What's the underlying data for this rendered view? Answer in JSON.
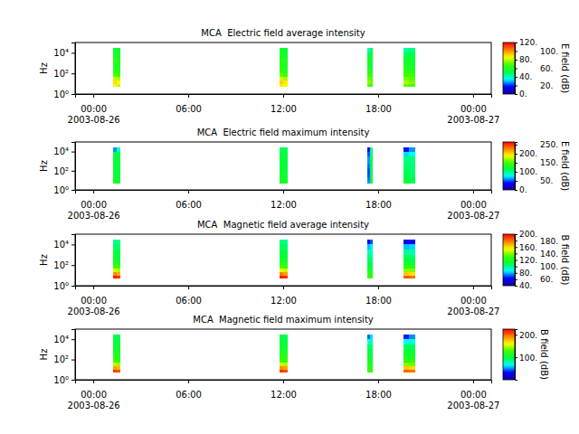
{
  "chart_data": [
    {
      "type": "heatmap",
      "title": "MCA  Electric field average intensity",
      "ylabel": "Hz",
      "log": "y",
      "xlim": [
        "2003-08-25T22:51",
        "2003-08-27T01:09"
      ],
      "xticks": [
        {
          "value": "2003-08-26T00:00",
          "label": "00:00\n2003-08-26"
        },
        {
          "value": "2003-08-26T06:00",
          "label": "06:00"
        },
        {
          "value": "2003-08-26T12:00",
          "label": "12:00"
        },
        {
          "value": "2003-08-26T18:00",
          "label": "18:00"
        },
        {
          "value": "2003-08-27T00:00",
          "label": "00:00\n2003-08-27"
        }
      ],
      "ylim": [
        1,
        100000
      ],
      "yticks": [
        {
          "value": 1,
          "label": "10⁰"
        },
        {
          "value": 100,
          "label": "10²"
        },
        {
          "value": 10000,
          "label": "10⁴"
        }
      ],
      "time_bins": [
        [
          "2003-08-26T01:15",
          "2003-08-26T01:29"
        ],
        [
          "2003-08-26T01:29",
          "2003-08-26T01:43"
        ],
        [
          "2003-08-26T11:46",
          "2003-08-26T12:01"
        ],
        [
          "2003-08-26T12:01",
          "2003-08-26T12:17"
        ],
        [
          "2003-08-26T17:19",
          "2003-08-26T17:30"
        ],
        [
          "2003-08-26T17:30",
          "2003-08-26T17:40"
        ],
        [
          "2003-08-26T19:36",
          "2003-08-26T19:58"
        ],
        [
          "2003-08-26T19:58",
          "2003-08-26T20:20"
        ]
      ],
      "freq_bins": [
        5,
        10,
        20,
        50,
        100,
        200,
        500,
        1000,
        3000,
        10000,
        30000
      ],
      "cells": [
        [
          85,
          90,
          80,
          70,
          65,
          60,
          60,
          62,
          58,
          55
        ],
        [
          80,
          85,
          78,
          68,
          62,
          60,
          58,
          60,
          57,
          55
        ],
        [
          88,
          92,
          82,
          72,
          66,
          62,
          60,
          62,
          58,
          56
        ],
        [
          84,
          88,
          78,
          68,
          64,
          60,
          58,
          60,
          56,
          54
        ],
        [
          70,
          75,
          72,
          66,
          62,
          58,
          56,
          58,
          50,
          40
        ],
        [
          68,
          72,
          70,
          64,
          60,
          58,
          55,
          56,
          52,
          48
        ],
        [
          72,
          78,
          74,
          68,
          64,
          60,
          58,
          56,
          50,
          42
        ],
        [
          70,
          74,
          70,
          66,
          62,
          58,
          56,
          55,
          52,
          46
        ]
      ],
      "colorbar": {
        "label": "E field (dB)",
        "range": [
          0,
          120
        ],
        "ticks": [
          {
            "value": 0,
            "label": "0."
          },
          {
            "value": 20,
            "label": "20."
          },
          {
            "value": 40,
            "label": "40."
          },
          {
            "value": 60,
            "label": "60."
          },
          {
            "value": 80,
            "label": "80."
          },
          {
            "value": 100,
            "label": "100."
          },
          {
            "value": 120,
            "label": "120."
          }
        ]
      }
    },
    {
      "type": "heatmap",
      "title": "MCA  Electric field maximum intensity",
      "ylabel": "Hz",
      "log": "y",
      "xlim": [
        "2003-08-25T22:51",
        "2003-08-27T01:09"
      ],
      "xticks": [
        {
          "value": "2003-08-26T00:00",
          "label": "00:00\n2003-08-26"
        },
        {
          "value": "2003-08-26T06:00",
          "label": "06:00"
        },
        {
          "value": "2003-08-26T12:00",
          "label": "12:00"
        },
        {
          "value": "2003-08-26T18:00",
          "label": "18:00"
        },
        {
          "value": "2003-08-27T00:00",
          "label": "00:00\n2003-08-27"
        }
      ],
      "ylim": [
        1,
        100000
      ],
      "yticks": [
        {
          "value": 1,
          "label": "10⁰"
        },
        {
          "value": 100,
          "label": "10²"
        },
        {
          "value": 10000,
          "label": "10⁴"
        }
      ],
      "time_bins": [
        [
          "2003-08-26T01:15",
          "2003-08-26T01:29"
        ],
        [
          "2003-08-26T01:29",
          "2003-08-26T01:43"
        ],
        [
          "2003-08-26T11:46",
          "2003-08-26T12:01"
        ],
        [
          "2003-08-26T12:01",
          "2003-08-26T12:17"
        ],
        [
          "2003-08-26T17:19",
          "2003-08-26T17:30"
        ],
        [
          "2003-08-26T17:30",
          "2003-08-26T17:40"
        ],
        [
          "2003-08-26T19:36",
          "2003-08-26T19:58"
        ],
        [
          "2003-08-26T19:58",
          "2003-08-26T20:20"
        ]
      ],
      "freq_bins": [
        5,
        10,
        20,
        50,
        100,
        200,
        500,
        1000,
        3000,
        10000,
        30000
      ],
      "cells": [
        [
          125,
          125,
          120,
          118,
          118,
          118,
          118,
          118,
          110,
          60
        ],
        [
          122,
          122,
          120,
          118,
          118,
          118,
          116,
          116,
          112,
          90
        ],
        [
          128,
          128,
          124,
          120,
          120,
          118,
          118,
          118,
          114,
          110
        ],
        [
          124,
          124,
          122,
          120,
          118,
          118,
          116,
          116,
          112,
          108
        ],
        [
          60,
          55,
          50,
          48,
          50,
          55,
          60,
          60,
          50,
          40
        ],
        [
          115,
          115,
          112,
          110,
          110,
          110,
          108,
          108,
          104,
          100
        ],
        [
          118,
          116,
          112,
          110,
          108,
          106,
          104,
          100,
          70,
          40
        ],
        [
          112,
          110,
          108,
          106,
          104,
          104,
          102,
          100,
          80,
          60
        ]
      ],
      "colorbar": {
        "label": "E field (dB)",
        "range": [
          0,
          265
        ],
        "ticks": [
          {
            "value": 0,
            "label": "0."
          },
          {
            "value": 50,
            "label": "50."
          },
          {
            "value": 100,
            "label": "100."
          },
          {
            "value": 150,
            "label": "150."
          },
          {
            "value": 200,
            "label": "200."
          },
          {
            "value": 250,
            "label": "250."
          }
        ]
      }
    },
    {
      "type": "heatmap",
      "title": "MCA  Magnetic field average intensity",
      "ylabel": "Hz",
      "log": "y",
      "xlim": [
        "2003-08-25T22:51",
        "2003-08-27T01:09"
      ],
      "xticks": [
        {
          "value": "2003-08-26T00:00",
          "label": "00:00\n2003-08-26"
        },
        {
          "value": "2003-08-26T06:00",
          "label": "06:00"
        },
        {
          "value": "2003-08-26T12:00",
          "label": "12:00"
        },
        {
          "value": "2003-08-26T18:00",
          "label": "18:00"
        },
        {
          "value": "2003-08-27T00:00",
          "label": "00:00\n2003-08-27"
        }
      ],
      "ylim": [
        1,
        100000
      ],
      "yticks": [
        {
          "value": 1,
          "label": "10⁰"
        },
        {
          "value": 100,
          "label": "10²"
        },
        {
          "value": 10000,
          "label": "10⁴"
        }
      ],
      "time_bins": [
        [
          "2003-08-26T01:15",
          "2003-08-26T01:29"
        ],
        [
          "2003-08-26T01:29",
          "2003-08-26T01:43"
        ],
        [
          "2003-08-26T11:46",
          "2003-08-26T12:01"
        ],
        [
          "2003-08-26T12:01",
          "2003-08-26T12:17"
        ],
        [
          "2003-08-26T17:19",
          "2003-08-26T17:30"
        ],
        [
          "2003-08-26T17:30",
          "2003-08-26T17:40"
        ],
        [
          "2003-08-26T19:36",
          "2003-08-26T19:58"
        ],
        [
          "2003-08-26T19:58",
          "2003-08-26T20:20"
        ]
      ],
      "freq_bins": [
        5,
        10,
        20,
        50,
        100,
        200,
        500,
        1000,
        3000,
        10000,
        30000
      ],
      "cells": [
        [
          195,
          175,
          150,
          130,
          120,
          115,
          112,
          110,
          105,
          100
        ],
        [
          190,
          170,
          145,
          128,
          118,
          114,
          110,
          108,
          104,
          100
        ],
        [
          195,
          178,
          152,
          132,
          122,
          116,
          112,
          110,
          106,
          102
        ],
        [
          192,
          172,
          148,
          130,
          120,
          115,
          110,
          108,
          104,
          100
        ],
        [
          130,
          125,
          118,
          112,
          108,
          104,
          100,
          96,
          80,
          60
        ],
        [
          125,
          120,
          115,
          110,
          106,
          102,
          98,
          94,
          84,
          70
        ],
        [
          185,
          165,
          140,
          125,
          115,
          110,
          104,
          98,
          80,
          55
        ],
        [
          180,
          160,
          138,
          122,
          114,
          108,
          102,
          96,
          82,
          62
        ]
      ],
      "colorbar": {
        "label": "B field (dB)",
        "range": [
          40,
          200
        ],
        "ticks": [
          {
            "value": 40,
            "label": "40."
          },
          {
            "value": 60,
            "label": "60."
          },
          {
            "value": 80,
            "label": "80."
          },
          {
            "value": 100,
            "label": "100."
          },
          {
            "value": 120,
            "label": "120."
          },
          {
            "value": 140,
            "label": "140."
          },
          {
            "value": 160,
            "label": "160."
          },
          {
            "value": 180,
            "label": "180."
          },
          {
            "value": 200,
            "label": "200."
          }
        ]
      }
    },
    {
      "type": "heatmap",
      "title": "MCA  Magnetic field maximum intensity",
      "ylabel": "Hz",
      "log": "y",
      "xlim": [
        "2003-08-25T22:51",
        "2003-08-27T01:09"
      ],
      "xticks": [
        {
          "value": "2003-08-26T00:00",
          "label": "00:00\n2003-08-26"
        },
        {
          "value": "2003-08-26T06:00",
          "label": "06:00"
        },
        {
          "value": "2003-08-26T12:00",
          "label": "12:00"
        },
        {
          "value": "2003-08-26T18:00",
          "label": "18:00"
        },
        {
          "value": "2003-08-27T00:00",
          "label": "00:00\n2003-08-27"
        }
      ],
      "ylim": [
        1,
        100000
      ],
      "yticks": [
        {
          "value": 1,
          "label": "10⁰"
        },
        {
          "value": 100,
          "label": "10²"
        },
        {
          "value": 10000,
          "label": "10⁴"
        }
      ],
      "time_bins": [
        [
          "2003-08-26T01:15",
          "2003-08-26T01:29"
        ],
        [
          "2003-08-26T01:29",
          "2003-08-26T01:43"
        ],
        [
          "2003-08-26T11:46",
          "2003-08-26T12:01"
        ],
        [
          "2003-08-26T12:01",
          "2003-08-26T12:17"
        ],
        [
          "2003-08-26T17:19",
          "2003-08-26T17:30"
        ],
        [
          "2003-08-26T17:30",
          "2003-08-26T17:40"
        ],
        [
          "2003-08-26T19:36",
          "2003-08-26T19:58"
        ],
        [
          "2003-08-26T19:58",
          "2003-08-26T20:20"
        ]
      ],
      "freq_bins": [
        5,
        10,
        20,
        50,
        100,
        200,
        500,
        1000,
        3000,
        10000,
        30000
      ],
      "cells": [
        [
          210,
          185,
          150,
          125,
          118,
          112,
          108,
          104,
          100,
          95
        ],
        [
          205,
          180,
          145,
          122,
          116,
          110,
          106,
          102,
          98,
          94
        ],
        [
          212,
          188,
          152,
          128,
          120,
          114,
          110,
          106,
          100,
          96
        ],
        [
          206,
          182,
          148,
          125,
          118,
          112,
          108,
          104,
          98,
          94
        ],
        [
          125,
          120,
          112,
          108,
          104,
          100,
          96,
          90,
          70,
          45
        ],
        [
          120,
          116,
          110,
          106,
          102,
          98,
          94,
          90,
          76,
          60
        ],
        [
          200,
          175,
          140,
          120,
          112,
          106,
          100,
          92,
          65,
          35
        ],
        [
          195,
          170,
          136,
          118,
          110,
          104,
          98,
          92,
          72,
          50
        ]
      ],
      "colorbar": {
        "label": "B field (dB)",
        "range": [
          0,
          225
        ],
        "ticks": [
          {
            "value": 100,
            "label": "100."
          },
          {
            "value": 200,
            "label": "200."
          }
        ]
      }
    }
  ]
}
